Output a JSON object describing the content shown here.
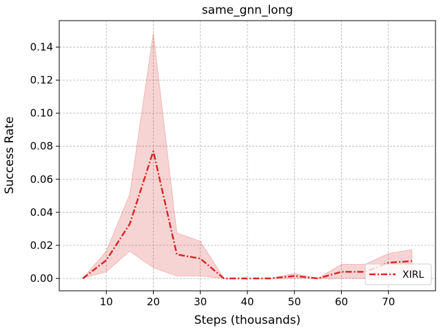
{
  "chart_data": {
    "type": "line",
    "title": "same_gnn_long",
    "xlabel": "Steps (thousands)",
    "ylabel": "Success Rate",
    "xlim": [
      0,
      80
    ],
    "ylim": [
      -0.0075,
      0.156
    ],
    "xticks": [
      10,
      20,
      30,
      40,
      50,
      60,
      70
    ],
    "yticks": [
      0.0,
      0.02,
      0.04,
      0.06,
      0.08,
      0.1,
      0.12,
      0.14
    ],
    "ytick_labels": [
      "0.00",
      "0.02",
      "0.04",
      "0.06",
      "0.08",
      "0.10",
      "0.12",
      "0.14"
    ],
    "grid": true,
    "legend_position": "lower-right",
    "series": [
      {
        "name": "XIRL",
        "color": "#d62728",
        "band_color": "#d62728",
        "x": [
          5,
          10,
          15,
          20,
          25,
          30,
          35,
          40,
          45,
          50,
          55,
          60,
          65,
          70,
          75
        ],
        "values": [
          0.0,
          0.011,
          0.033,
          0.077,
          0.0145,
          0.012,
          0.0,
          0.0,
          0.0,
          0.0015,
          0.0,
          0.004,
          0.004,
          0.0095,
          0.0105
        ],
        "lower": [
          0.0,
          0.004,
          0.0165,
          0.0065,
          0.0015,
          0.0015,
          0.0,
          0.0,
          0.0,
          0.0,
          0.0,
          0.0,
          0.0,
          0.0035,
          0.003
        ],
        "upper": [
          0.0,
          0.0165,
          0.051,
          0.1485,
          0.0275,
          0.0225,
          0.0,
          0.0,
          0.0,
          0.003,
          0.0,
          0.0085,
          0.0085,
          0.015,
          0.0175
        ]
      }
    ]
  }
}
